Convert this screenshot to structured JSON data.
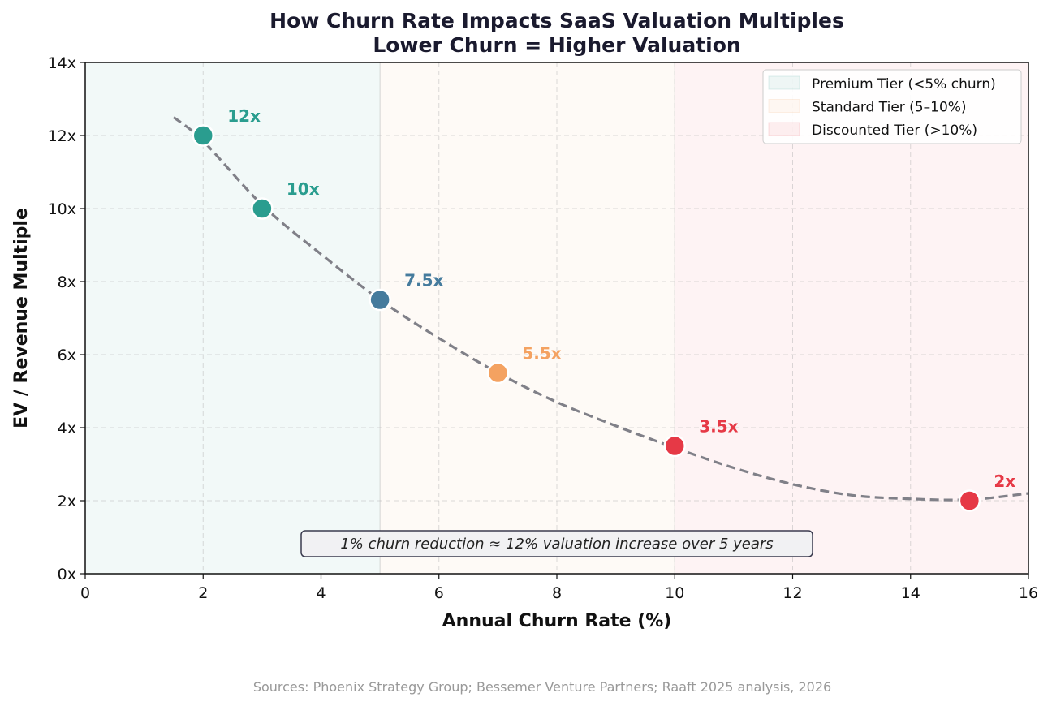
{
  "chart_data": {
    "type": "scatter",
    "title": "How Churn Rate Impacts SaaS Valuation Multiples",
    "subtitle": "Lower Churn = Higher Valuation",
    "xlabel": "Annual Churn Rate (%)",
    "ylabel": "EV / Revenue Multiple",
    "xlim": [
      0,
      16
    ],
    "ylim": [
      0,
      14
    ],
    "x_ticks": [
      0,
      2,
      4,
      6,
      8,
      10,
      12,
      14,
      16
    ],
    "y_ticks": [
      0,
      2,
      4,
      6,
      8,
      10,
      12,
      14
    ],
    "y_tick_suffix": "x",
    "grid": true,
    "legend_position": "top-right",
    "points": [
      {
        "x": 2,
        "y": 12,
        "label": "12x",
        "color": "#2a9d8f"
      },
      {
        "x": 3,
        "y": 10,
        "label": "10x",
        "color": "#2a9d8f"
      },
      {
        "x": 5,
        "y": 7.5,
        "label": "7.5x",
        "color": "#457b9d"
      },
      {
        "x": 7,
        "y": 5.5,
        "label": "5.5x",
        "color": "#f4a261"
      },
      {
        "x": 10,
        "y": 3.5,
        "label": "3.5x",
        "color": "#e63946"
      },
      {
        "x": 15,
        "y": 2,
        "label": "2x",
        "color": "#e63946"
      }
    ],
    "trend_line": {
      "style": "dashed",
      "color": "#808088",
      "x": [
        1.5,
        2,
        3,
        4,
        5,
        6,
        7,
        8,
        9,
        10,
        11,
        12,
        13,
        14,
        15,
        16
      ],
      "y": [
        12.5,
        11.85,
        10.1,
        8.75,
        7.5,
        6.45,
        5.5,
        4.7,
        4.05,
        3.45,
        2.9,
        2.45,
        2.15,
        2.05,
        2.03,
        2.2
      ]
    },
    "regions": [
      {
        "name": "Premium Tier (<5% churn)",
        "x_start": 0,
        "x_end": 5,
        "color": "#2a9d8f"
      },
      {
        "name": "Standard Tier (5–10%)",
        "x_start": 5,
        "x_end": 10,
        "color": "#f4a261"
      },
      {
        "name": "Discounted Tier (>10%)",
        "x_start": 10,
        "x_end": 16,
        "color": "#e63946"
      }
    ],
    "annotation": "1% churn reduction ≈ 12% valuation increase over 5 years",
    "source": "Sources: Phoenix Strategy Group; Bessemer Venture Partners; Raaft 2025 analysis, 2026"
  }
}
